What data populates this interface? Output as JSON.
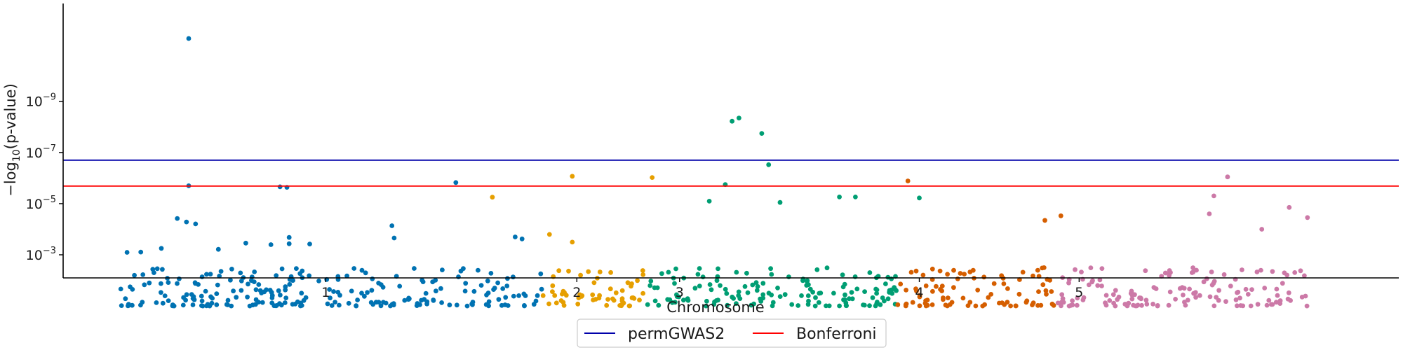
{
  "chart_data": {
    "type": "scatter",
    "title": "",
    "xlabel": "Chromosome",
    "ylabel_parts": [
      "−log",
      "10",
      "(p-value)"
    ],
    "y_scale": "log",
    "y_inverted": true,
    "ylim": [
      0.008,
      1.5e-13
    ],
    "y_ticks": [
      {
        "value": 0.001,
        "base": "10",
        "exp": "−3"
      },
      {
        "value": 1e-05,
        "base": "10",
        "exp": "−5"
      },
      {
        "value": 1e-07,
        "base": "10",
        "exp": "−7"
      },
      {
        "value": 1e-09,
        "base": "10",
        "exp": "−9"
      }
    ],
    "grid": false,
    "legend_placement": "bottom-center",
    "thresholds": [
      {
        "name": "permGWAS2",
        "value": 2e-07,
        "color": "#0000aa"
      },
      {
        "name": "Bonferroni",
        "value": 2.05e-06,
        "color": "#ff0000"
      }
    ],
    "chromosomes": [
      {
        "label": "1",
        "tick": 1,
        "color": "#0072b2",
        "start": 0.1,
        "end": 1.95
      },
      {
        "label": "2",
        "tick": 2.1,
        "color": "#e69f00",
        "start": 1.95,
        "end": 2.4
      },
      {
        "label": "3",
        "tick": 2.55,
        "color": "#009e73",
        "start": 2.4,
        "end": 3.5
      },
      {
        "label": "4",
        "tick": 3.6,
        "color": "#d55e00",
        "start": 3.5,
        "end": 4.2
      },
      {
        "label": "5",
        "tick": 4.3,
        "color": "#cc79a7",
        "start": 4.2,
        "end": 5.3
      }
    ],
    "xlim": [
      -0.15,
      5.7
    ],
    "points": {
      "1": [
        [
          0.4,
          3.5e-12
        ],
        [
          0.4,
          2e-06
        ],
        [
          0.8,
          2.2e-06
        ],
        [
          0.83,
          2.3e-06
        ],
        [
          1.57,
          1.5e-06
        ],
        [
          0.35,
          3.8e-05
        ],
        [
          0.39,
          5.2e-05
        ],
        [
          0.43,
          6.2e-05
        ],
        [
          0.84,
          0.00021
        ],
        [
          0.84,
          0.00037
        ],
        [
          1.29,
          7.3e-05
        ],
        [
          1.3,
          0.00022
        ],
        [
          0.65,
          0.00035
        ],
        [
          0.76,
          0.0004
        ],
        [
          0.13,
          0.0008
        ],
        [
          0.19,
          0.00078
        ],
        [
          0.28,
          0.00056
        ],
        [
          0.53,
          0.00061
        ],
        [
          0.93,
          0.00038
        ],
        [
          1.83,
          0.0002
        ],
        [
          1.86,
          0.00024
        ]
      ],
      "2": [
        [
          2.08,
          8.5e-07
        ],
        [
          2.43,
          9.5e-07
        ],
        [
          1.73,
          5.6e-06
        ],
        [
          1.98,
          0.00016
        ],
        [
          2.08,
          0.00032
        ]
      ],
      "3": [
        [
          2.78,
          6e-09
        ],
        [
          2.81,
          4.5e-09
        ],
        [
          2.91,
          1.8e-08
        ],
        [
          2.94,
          3e-07
        ],
        [
          2.75,
          1.8e-06
        ],
        [
          2.99,
          9e-06
        ],
        [
          3.6,
          6e-06
        ],
        [
          3.25,
          5.5e-06
        ],
        [
          3.32,
          5.5e-06
        ],
        [
          2.68,
          8e-06
        ]
      ],
      "4": [
        [
          3.55,
          1.3e-06
        ],
        [
          4.15,
          4.5e-05
        ],
        [
          4.22,
          3e-05
        ]
      ],
      "5": [
        [
          4.95,
          9e-07
        ],
        [
          4.89,
          5e-06
        ],
        [
          4.87,
          2.5e-05
        ],
        [
          5.22,
          1.4e-05
        ],
        [
          5.1,
          0.0001
        ],
        [
          5.3,
          3.5e-05
        ]
      ]
    }
  },
  "legend": {
    "items": [
      {
        "label": "permGWAS2",
        "color": "#0000aa"
      },
      {
        "label": "Bonferroni",
        "color": "#ff0000"
      }
    ]
  }
}
